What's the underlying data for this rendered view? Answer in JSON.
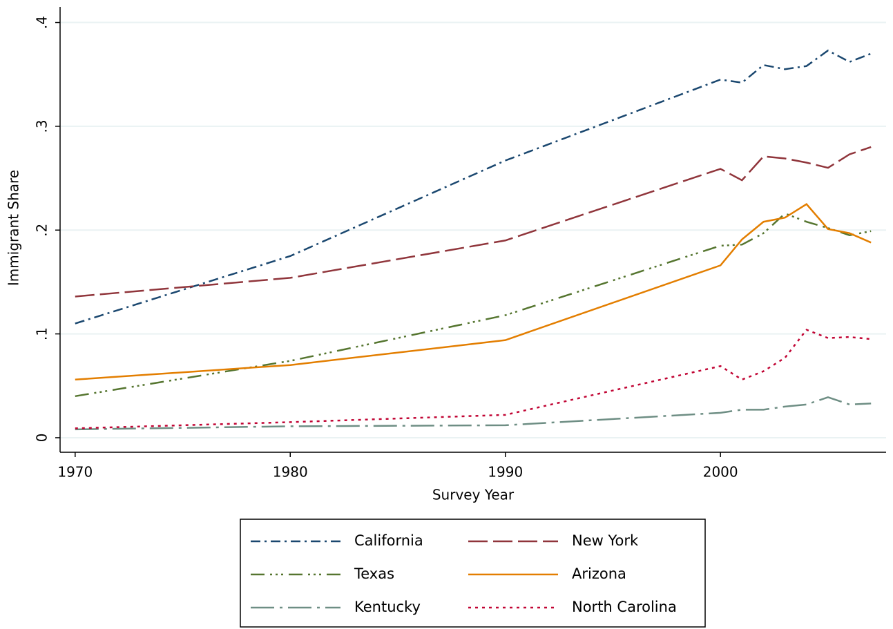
{
  "chart_data": {
    "type": "line",
    "x_label": "Survey Year",
    "y_label": "Immigrant Share",
    "x": [
      1970,
      1980,
      1990,
      2000,
      2001,
      2002,
      2003,
      2004,
      2005,
      2006,
      2007
    ],
    "series": [
      {
        "name": "California",
        "color": "#1a476f",
        "values": [
          0.11,
          0.175,
          0.267,
          0.345,
          0.342,
          0.359,
          0.355,
          0.358,
          0.373,
          0.362,
          0.37
        ]
      },
      {
        "name": "New York",
        "color": "#90353b",
        "values": [
          0.136,
          0.154,
          0.19,
          0.259,
          0.248,
          0.271,
          0.269,
          0.265,
          0.26,
          0.273,
          0.28
        ]
      },
      {
        "name": "Texas",
        "color": "#55752f",
        "values": [
          0.04,
          0.074,
          0.118,
          0.185,
          0.186,
          0.197,
          0.216,
          0.208,
          0.202,
          0.195,
          0.199
        ]
      },
      {
        "name": "Arizona",
        "color": "#e37e00",
        "values": [
          0.056,
          0.07,
          0.094,
          0.166,
          0.191,
          0.208,
          0.212,
          0.225,
          0.201,
          0.197,
          0.188
        ]
      },
      {
        "name": "Kentucky",
        "color": "#6e8e84",
        "values": [
          0.008,
          0.011,
          0.012,
          0.024,
          0.027,
          0.027,
          0.03,
          0.032,
          0.039,
          0.032,
          0.033
        ]
      },
      {
        "name": "North Carolina",
        "color": "#c10534",
        "values": [
          0.009,
          0.015,
          0.022,
          0.069,
          0.056,
          0.064,
          0.077,
          0.104,
          0.096,
          0.097,
          0.095
        ]
      }
    ],
    "xlim": [
      1969.3,
      2007.7
    ],
    "xticks": [
      1970,
      1980,
      1990,
      2000
    ],
    "ylim": [
      -0.014,
      0.415
    ],
    "yticks": [
      0,
      {
        "value": 0.1,
        "label": ".1"
      },
      {
        "value": 0.2,
        "label": ".2"
      },
      {
        "value": 0.3,
        "label": ".3"
      },
      {
        "value": 0.4,
        "label": ".4"
      }
    ],
    "grid": true
  }
}
